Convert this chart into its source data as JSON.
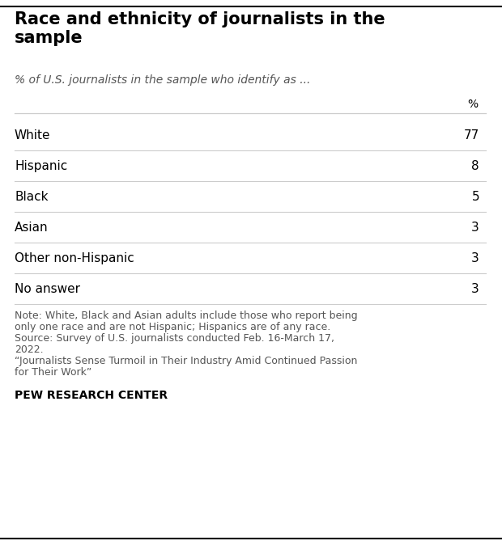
{
  "title": "Race and ethnicity of journalists in the\nsample",
  "subtitle": "% of U.S. journalists in the sample who identify as ...",
  "col_header": "%",
  "rows": [
    {
      "label": "White",
      "value": "77"
    },
    {
      "label": "Hispanic",
      "value": "8"
    },
    {
      "label": "Black",
      "value": "5"
    },
    {
      "label": "Asian",
      "value": "3"
    },
    {
      "label": "Other non-Hispanic",
      "value": "3"
    },
    {
      "label": "No answer",
      "value": "3"
    }
  ],
  "note_lines": [
    "Note: White, Black and Asian adults include those who report being",
    "only one race and are not Hispanic; Hispanics are of any race.",
    "Source: Survey of U.S. journalists conducted Feb. 16-March 17,",
    "2022.",
    "“Journalists Sense Turmoil in Their Industry Amid Continued Passion",
    "for Their Work”"
  ],
  "footer": "PEW RESEARCH CENTER",
  "bg_color": "#ffffff",
  "title_color": "#000000",
  "subtitle_color": "#555555",
  "row_label_color": "#000000",
  "row_value_color": "#000000",
  "note_color": "#555555",
  "footer_color": "#000000",
  "separator_color": "#cccccc",
  "top_border_color": "#000000",
  "bottom_border_color": "#000000",
  "title_fontsize": 15,
  "subtitle_fontsize": 10,
  "header_fontsize": 10,
  "row_fontsize": 11,
  "note_fontsize": 9,
  "footer_fontsize": 10
}
